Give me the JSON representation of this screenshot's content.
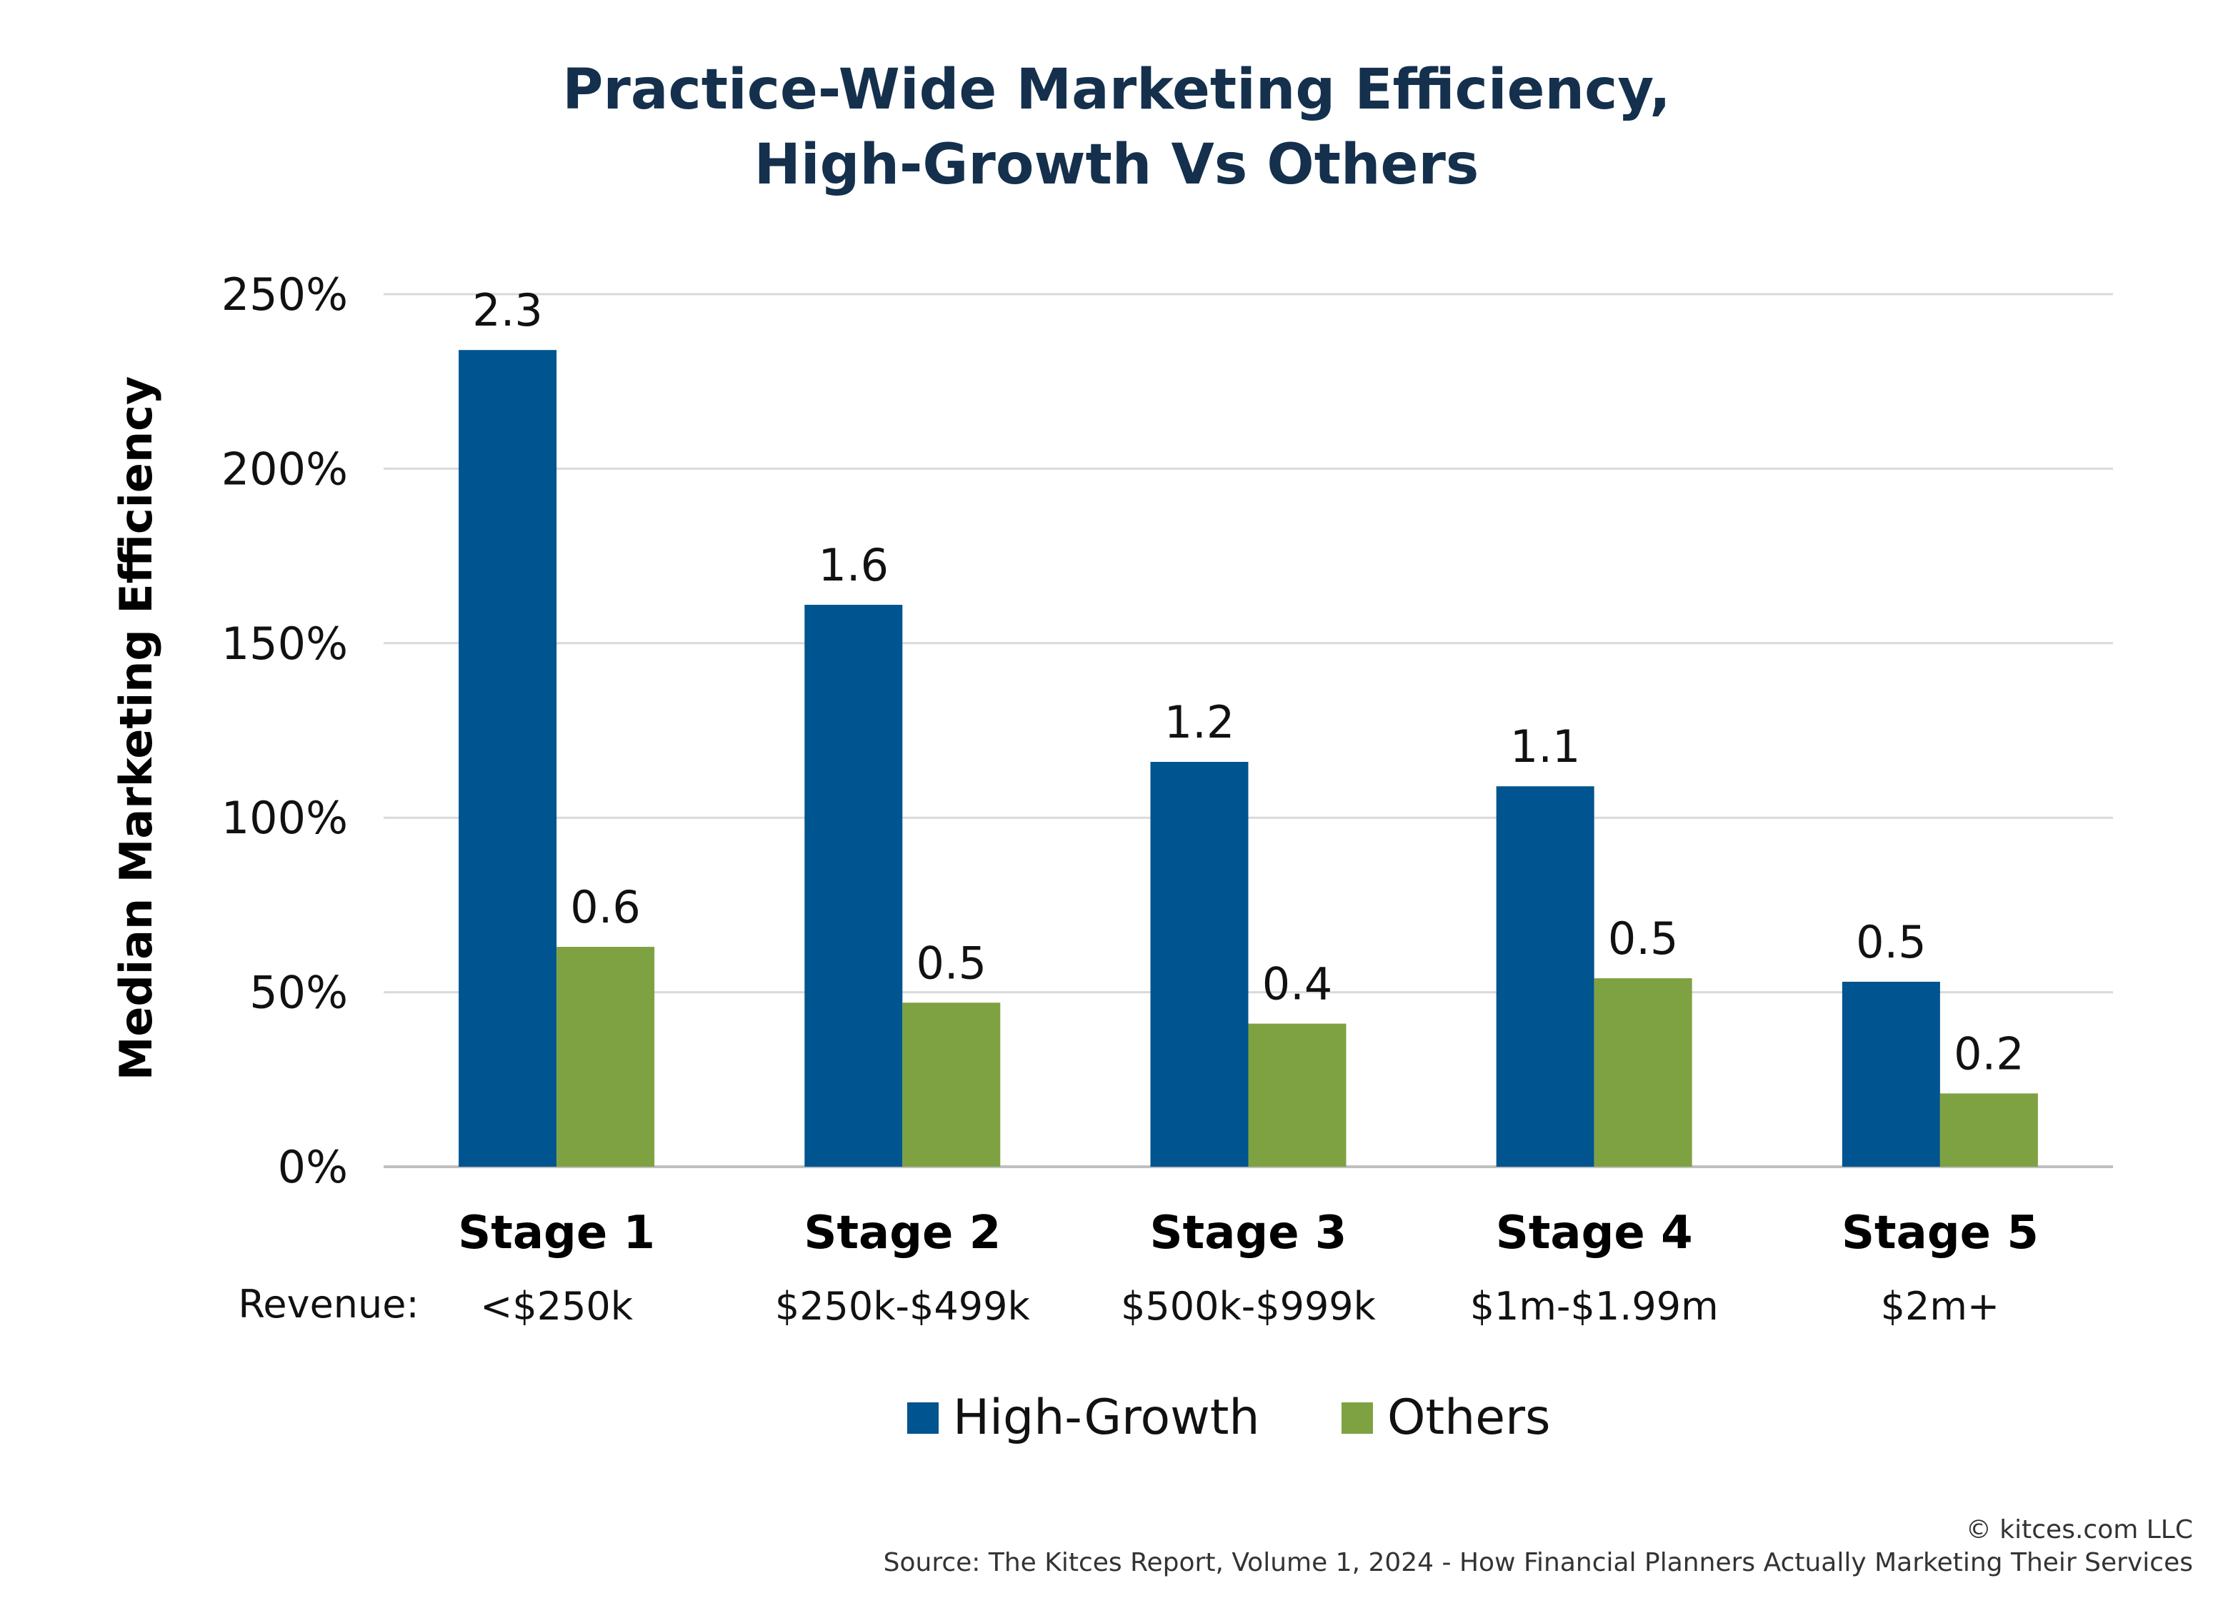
{
  "chart_data": {
    "type": "bar",
    "title_lines": [
      "Practice-Wide Marketing Efficiency,",
      "High-Growth Vs Others"
    ],
    "ylabel": "Median Marketing Efficiency",
    "xlabel": "",
    "ylim": [
      0,
      250
    ],
    "ytick_values": [
      0,
      50,
      100,
      150,
      200,
      250
    ],
    "yticks": [
      "0%",
      "50%",
      "100%",
      "150%",
      "200%",
      "250%"
    ],
    "grid": true,
    "legend_position": "bottom-center",
    "categories": [
      "Stage 1",
      "Stage 2",
      "Stage 3",
      "Stage 4",
      "Stage 5"
    ],
    "revenue_prefix": "Revenue:",
    "revenue_labels": [
      "<$250k",
      "$250k-$499k",
      "$500k-$999k",
      "$1m-$1.99m",
      "$2m+"
    ],
    "series": [
      {
        "name": "High-Growth",
        "color": "#00548f",
        "values": [
          234,
          161,
          116,
          109,
          53
        ],
        "data_labels": [
          "2.3",
          "1.6",
          "1.2",
          "1.1",
          "0.5"
        ]
      },
      {
        "name": "Others",
        "color": "#7ea241",
        "values": [
          63,
          47,
          41,
          54,
          21
        ],
        "data_labels": [
          "0.6",
          "0.5",
          "0.4",
          "0.5",
          "0.2"
        ]
      }
    ]
  },
  "footer": {
    "copyright": "© kitces.com LLC",
    "source": "Source: The Kitces Report, Volume 1, 2024 - How Financial Planners Actually Marketing Their Services"
  }
}
